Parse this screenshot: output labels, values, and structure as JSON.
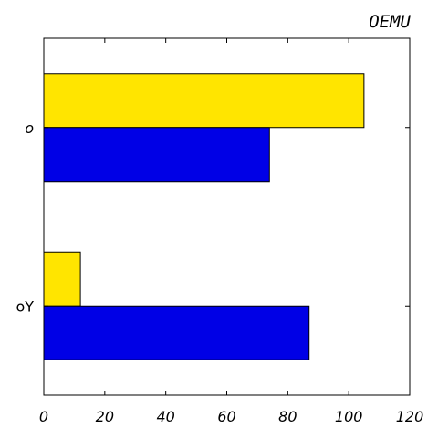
{
  "chart_data": {
    "type": "bar",
    "orientation": "horizontal",
    "title": "OEMU",
    "categories": [
      "o",
      "oY"
    ],
    "series": [
      {
        "color": "#ffe500",
        "values": [
          105,
          12
        ]
      },
      {
        "color": "#0000e6",
        "values": [
          74,
          87
        ]
      }
    ],
    "xlim": [
      0,
      120
    ],
    "xticks": [
      0,
      20,
      40,
      60,
      80,
      100,
      120
    ],
    "grid": false,
    "legend": "none"
  }
}
